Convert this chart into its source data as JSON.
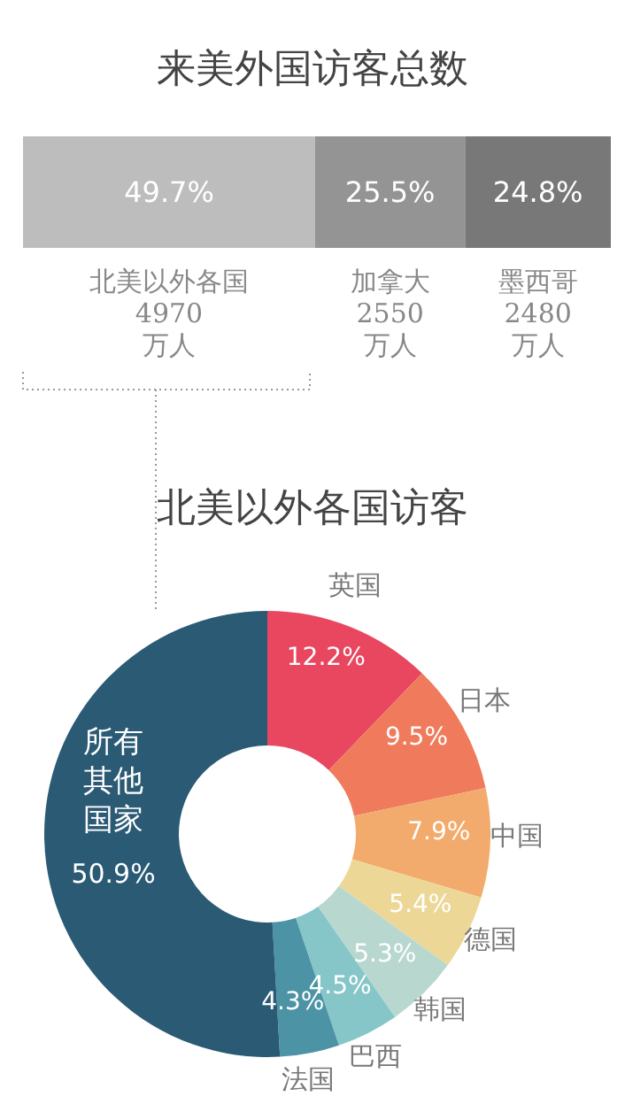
{
  "chart_data": [
    {
      "type": "bar",
      "title": "来美外国访客总数",
      "orientation": "horizontal",
      "stacked": true,
      "categories": [
        null
      ],
      "xlim": [
        0,
        100
      ],
      "series": [
        {
          "name": "北美以外各国",
          "color": "#bdbdbd",
          "values": [
            49.7
          ],
          "value_labels": [
            "49.7%"
          ]
        },
        {
          "name": "加拿大",
          "color": "#949494",
          "values": [
            25.5
          ],
          "value_labels": [
            "25.5%"
          ]
        },
        {
          "name": "墨西哥",
          "color": "#787878",
          "values": [
            24.8
          ],
          "value_labels": [
            "24.8%"
          ]
        }
      ],
      "annotations": [
        "4970 万人",
        "2550 万人",
        "2480 万人"
      ]
    },
    {
      "type": "donut",
      "title": "北美以外各国访客",
      "categories": [
        "英国",
        "日本",
        "中国",
        "德国",
        "韩国",
        "巴西",
        "法国",
        "所有其他国家"
      ],
      "values": [
        12.2,
        9.5,
        7.9,
        5.4,
        5.3,
        4.5,
        4.3,
        50.9
      ],
      "colors": [
        "#e8475f",
        "#ef7b5c",
        "#f2ab6c",
        "#ecd796",
        "#b8d8cf",
        "#86c6c9",
        "#4b93a5",
        "#2b5a74"
      ],
      "value_labels": [
        "12.2%",
        "9.5%",
        "7.9%",
        "5.4%",
        "5.3%",
        "4.5%",
        "4.3%",
        "50.9%"
      ]
    }
  ]
}
